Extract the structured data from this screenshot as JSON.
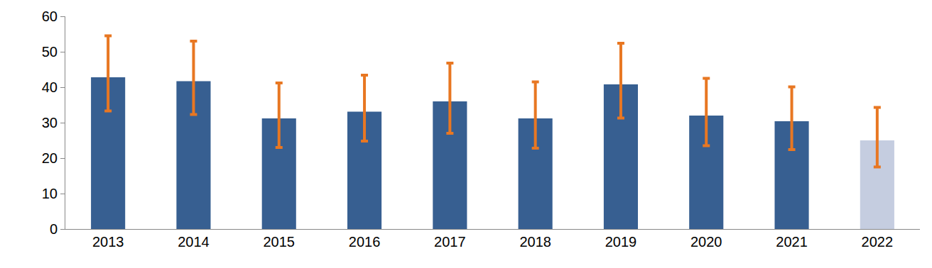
{
  "chart_data": {
    "type": "bar",
    "categories": [
      "2013",
      "2014",
      "2015",
      "2016",
      "2017",
      "2018",
      "2019",
      "2020",
      "2021",
      "2022"
    ],
    "values": [
      42.8,
      41.7,
      31.2,
      33.1,
      36.0,
      31.2,
      40.8,
      32.0,
      30.4,
      25.0
    ],
    "error_plus": [
      11.7,
      11.3,
      10.0,
      10.3,
      10.8,
      10.3,
      11.6,
      10.5,
      9.7,
      9.3
    ],
    "error_minus": [
      9.5,
      9.4,
      8.2,
      8.3,
      9.0,
      8.4,
      9.5,
      8.5,
      8.0,
      7.5
    ],
    "colors": [
      "#375f91",
      "#375f91",
      "#375f91",
      "#375f91",
      "#375f91",
      "#375f91",
      "#375f91",
      "#375f91",
      "#375f91",
      "#c5cde0"
    ],
    "error_color": "#e87722",
    "ylim": [
      0,
      60
    ],
    "yticks": [
      0,
      10,
      20,
      30,
      40,
      50,
      60
    ],
    "grid": false
  }
}
